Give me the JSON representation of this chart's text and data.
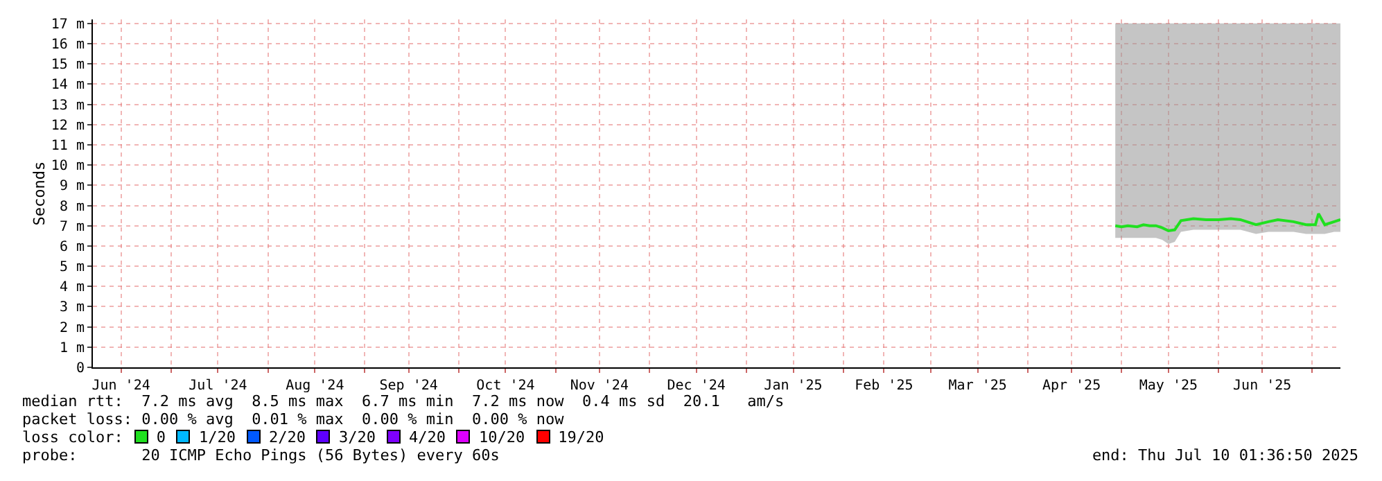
{
  "chart_data": {
    "type": "line",
    "ylabel": "Seconds",
    "x": [
      "2025-04-29",
      "2025-05-01",
      "2025-05-03",
      "2025-05-06",
      "2025-05-08",
      "2025-05-10",
      "2025-05-12",
      "2025-05-14",
      "2025-05-16",
      "2025-05-18",
      "2025-05-20",
      "2025-05-24",
      "2025-05-28",
      "2025-06-01",
      "2025-06-05",
      "2025-06-08",
      "2025-06-13",
      "2025-06-17",
      "2025-06-20",
      "2025-06-25",
      "2025-06-29",
      "2025-07-02",
      "2025-07-03",
      "2025-07-05",
      "2025-07-08",
      "2025-07-10"
    ],
    "series": [
      {
        "name": "0",
        "color": "#20e020",
        "values": [
          7.0,
          6.95,
          7.0,
          6.95,
          7.05,
          7.0,
          7.0,
          6.9,
          6.75,
          6.8,
          7.25,
          7.35,
          7.3,
          7.3,
          7.35,
          7.3,
          7.05,
          7.2,
          7.3,
          7.2,
          7.05,
          7.05,
          7.6,
          7.05,
          7.2,
          7.3
        ],
        "lower": [
          6.4,
          6.4,
          6.4,
          6.4,
          6.4,
          6.4,
          6.4,
          6.3,
          6.1,
          6.2,
          6.7,
          6.8,
          6.8,
          6.8,
          6.8,
          6.8,
          6.6,
          6.7,
          6.7,
          6.7,
          6.6,
          6.6,
          6.6,
          6.6,
          6.7,
          6.7
        ],
        "upper": [
          17,
          17,
          17,
          17,
          17,
          17,
          17,
          17,
          17,
          17,
          17,
          17,
          17,
          17,
          17,
          17,
          17,
          17,
          17,
          17,
          17,
          17,
          17,
          17,
          17,
          17
        ]
      },
      {
        "name": "1/20",
        "color": "#00b8ff",
        "values": [
          null,
          null,
          null,
          null,
          null,
          null,
          null,
          null,
          null,
          null,
          null,
          null,
          null,
          null,
          null,
          null,
          null,
          null,
          null,
          null,
          null,
          null,
          null,
          null,
          null,
          null
        ]
      },
      {
        "name": "2/20",
        "color": "#0059ff",
        "values": [
          null,
          null,
          null,
          null,
          null,
          null,
          null,
          null,
          null,
          null,
          null,
          null,
          null,
          null,
          null,
          null,
          null,
          null,
          null,
          null,
          null,
          null,
          null,
          null,
          null,
          null
        ]
      },
      {
        "name": "3/20",
        "color": "#5e00ff",
        "values": [
          null,
          null,
          null,
          null,
          null,
          null,
          null,
          null,
          null,
          null,
          null,
          null,
          null,
          null,
          null,
          null,
          null,
          null,
          null,
          null,
          null,
          null,
          null,
          null,
          null,
          null
        ]
      },
      {
        "name": "4/20",
        "color": "#7e00ff",
        "values": [
          null,
          null,
          null,
          null,
          null,
          null,
          null,
          null,
          null,
          null,
          null,
          null,
          null,
          null,
          null,
          null,
          null,
          null,
          null,
          null,
          null,
          null,
          null,
          null,
          null,
          null
        ]
      },
      {
        "name": "10/20",
        "color": "#dd00ff",
        "values": [
          null,
          null,
          null,
          null,
          null,
          null,
          null,
          null,
          null,
          null,
          null,
          null,
          null,
          null,
          null,
          null,
          null,
          null,
          null,
          null,
          null,
          null,
          null,
          null,
          null,
          null
        ]
      },
      {
        "name": "19/20",
        "color": "#ff0000",
        "values": [
          null,
          null,
          null,
          null,
          null,
          null,
          null,
          null,
          null,
          null,
          null,
          null,
          null,
          null,
          null,
          null,
          null,
          null,
          null,
          null,
          null,
          null,
          null,
          null,
          null,
          null
        ]
      }
    ],
    "legend_title": "loss color:",
    "legend": "bottom",
    "grid": true,
    "marker": "none",
    "line_style": "solid",
    "xlim": [
      "2024-06-06",
      "2025-07-10"
    ],
    "xticks": [
      {
        "value": "2024-06-15",
        "label": "Jun '24"
      },
      {
        "value": "2024-07-01",
        "label": null
      },
      {
        "value": "2024-07-16",
        "label": "Jul '24"
      },
      {
        "value": "2024-08-01",
        "label": null
      },
      {
        "value": "2024-08-16",
        "label": "Aug '24"
      },
      {
        "value": "2024-09-01",
        "label": null
      },
      {
        "value": "2024-09-15",
        "label": "Sep '24"
      },
      {
        "value": "2024-10-01",
        "label": null
      },
      {
        "value": "2024-10-16",
        "label": "Oct '24"
      },
      {
        "value": "2024-11-01",
        "label": null
      },
      {
        "value": "2024-11-15",
        "label": "Nov '24"
      },
      {
        "value": "2024-12-01",
        "label": null
      },
      {
        "value": "2024-12-16",
        "label": "Dec '24"
      },
      {
        "value": "2025-01-01",
        "label": null
      },
      {
        "value": "2025-01-16",
        "label": "Jan '25"
      },
      {
        "value": "2025-02-01",
        "label": null
      },
      {
        "value": "2025-02-14",
        "label": "Feb '25"
      },
      {
        "value": "2025-03-01",
        "label": null
      },
      {
        "value": "2025-03-16",
        "label": "Mar '25"
      },
      {
        "value": "2025-04-01",
        "label": null
      },
      {
        "value": "2025-04-15",
        "label": "Apr '25"
      },
      {
        "value": "2025-05-01",
        "label": null
      },
      {
        "value": "2025-05-16",
        "label": "May '25"
      },
      {
        "value": "2025-06-01",
        "label": null
      },
      {
        "value": "2025-06-15",
        "label": "Jun '25"
      },
      {
        "value": "2025-07-01",
        "label": null
      }
    ],
    "ylim": [
      0,
      17.2
    ],
    "yticks": [
      0,
      {
        "value": 1,
        "label": "1 m"
      },
      {
        "value": 2,
        "label": "2 m"
      },
      {
        "value": 3,
        "label": "3 m"
      },
      {
        "value": 4,
        "label": "4 m"
      },
      {
        "value": 5,
        "label": "5 m"
      },
      {
        "value": 6,
        "label": "6 m"
      },
      {
        "value": 7,
        "label": "7 m"
      },
      {
        "value": 8,
        "label": "8 m"
      },
      {
        "value": 9,
        "label": "9 m"
      },
      {
        "value": 10,
        "label": "10 m"
      },
      {
        "value": 11,
        "label": "11 m"
      },
      {
        "value": 12,
        "label": "12 m"
      },
      {
        "value": 13,
        "label": "13 m"
      },
      {
        "value": 14,
        "label": "14 m"
      },
      {
        "value": 15,
        "label": "15 m"
      },
      {
        "value": 16,
        "label": "16 m"
      },
      {
        "value": 17,
        "label": "17 m"
      }
    ],
    "annotations": [
      "median rtt:  7.2 ms avg  8.5 ms max  6.7 ms min  7.2 ms now  0.4 ms sd  20.1   am/s",
      "packet loss: 0.00 % avg  0.01 % max  0.00 % min  0.00 % now",
      "probe:       20 ICMP Echo Pings (56 Bytes) every 60s",
      "end: Thu Jul 10 01:36:50 2025"
    ]
  }
}
